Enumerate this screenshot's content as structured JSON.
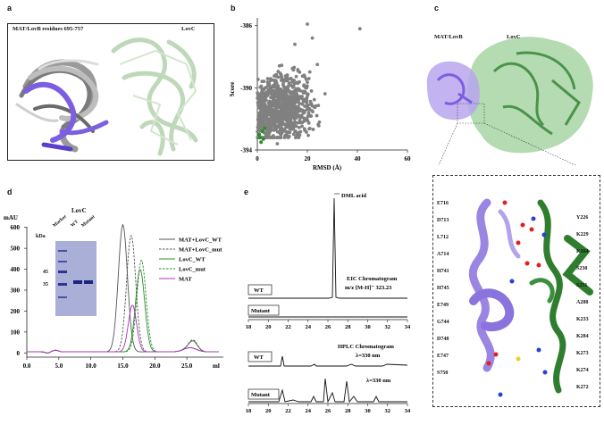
{
  "panels": {
    "a": {
      "letter": "a",
      "title": "MAT/LovB residues 695-757",
      "protein_label": "LovC"
    },
    "b": {
      "letter": "b",
      "chart_data": {
        "type": "scatter",
        "xlabel": "RMSD (Å)",
        "ylabel": "Score",
        "xlim": [
          0,
          60
        ],
        "ylim": [
          -394,
          -385.5
        ],
        "x_ticks": [
          "0",
          "20",
          "40",
          "60"
        ],
        "y_ticks": [
          "-386",
          "-390",
          "-394"
        ],
        "series": [
          {
            "color": "#808080"
          },
          {
            "color": "#2e8b2e"
          }
        ]
      }
    },
    "c": {
      "letter": "c",
      "label_left": "MAT/LovB",
      "label_right": "LovC"
    },
    "d": {
      "letter": "d",
      "chart_data": {
        "type": "line",
        "ylabel": "mAU",
        "xlabel": "ml",
        "xlim": [
          0,
          30
        ],
        "ylim": [
          -20,
          620
        ],
        "x_ticks": [
          "0.0",
          "5.0",
          "10.0",
          "15.0",
          "20.0",
          "25.0"
        ],
        "y_ticks": [
          "600",
          "500",
          "400",
          "300",
          "200",
          "100",
          "0"
        ],
        "series": [
          {
            "name": "MAT+LovC_WT",
            "color": "#555555",
            "dash": "solid",
            "peaks": [
              [
                15.0,
                610
              ],
              [
                26.0,
                35
              ]
            ]
          },
          {
            "name": "MAT+LovC_mut",
            "color": "#555555",
            "dash": "dashed",
            "peaks": [
              [
                16.3,
                560
              ],
              [
                26.0,
                40
              ]
            ]
          },
          {
            "name": "LovC_WT",
            "color": "#2e8b2e",
            "dash": "solid",
            "peaks": [
              [
                17.7,
                395
              ]
            ]
          },
          {
            "name": "LovC_mut",
            "color": "#2e8b2e",
            "dash": "dashed",
            "peaks": [
              [
                17.9,
                440
              ]
            ]
          },
          {
            "name": "MAT",
            "color": "#b030c0",
            "dash": "solid",
            "peaks": [
              [
                16.5,
                225
              ]
            ]
          }
        ]
      },
      "gel": {
        "title": "LovC",
        "kda_label": "kDa",
        "lane_labels": [
          "Marker",
          "WT",
          "Mutant"
        ],
        "marker_bands": [
          "45",
          "35"
        ]
      }
    },
    "e": {
      "letter": "e",
      "peak_label": "DML acid",
      "eic_title": "EIC Chromatogram",
      "eic_mz": "m/z [M-H]⁻ 323.23",
      "uv_title": "HPLC Chromatogram",
      "uv_wavelength_1": "λ=330 nm",
      "uv_wavelength_2": "λ=330 nm",
      "trace_labels": [
        "WT",
        "Mutant",
        "WT",
        "Mutant"
      ],
      "x_ticks": [
        "18",
        "20",
        "22",
        "24",
        "26",
        "28",
        "30",
        "32",
        "34"
      ]
    },
    "f": {
      "left_residues": [
        "E716",
        "D713",
        "L712",
        "A714",
        "H741",
        "H745",
        "E749",
        "G744",
        "D748",
        "E747",
        "S750"
      ],
      "right_residues": [
        "Y226",
        "K229",
        "K164",
        "S230",
        "S231",
        "A288",
        "K233",
        "K284",
        "K273",
        "K274",
        "K272"
      ]
    }
  }
}
